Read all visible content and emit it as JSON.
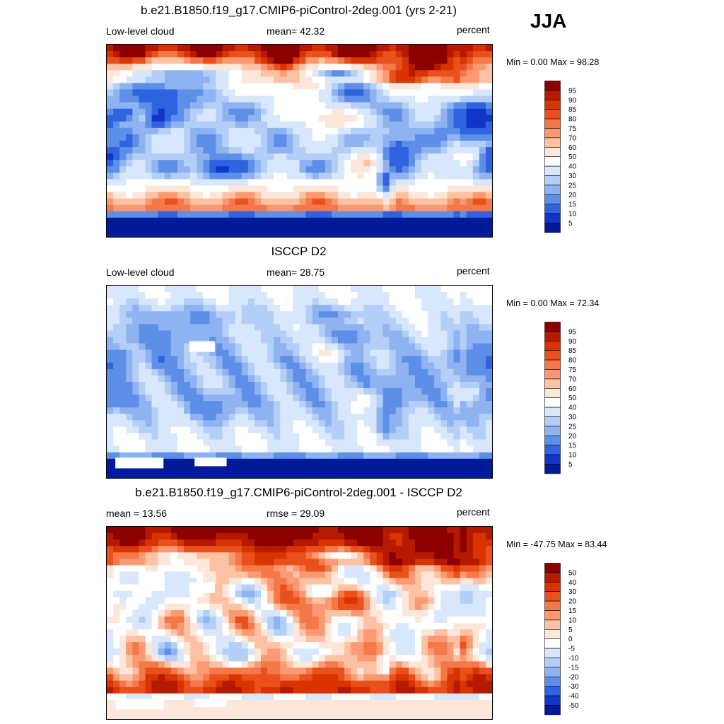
{
  "season": "JJA",
  "panels": [
    {
      "title": "b.e21.B1850.f19_g17.CMIP6-piControl-2deg.001 (yrs 2-21)",
      "left": "Low-level cloud",
      "center": "mean=  42.32",
      "right": "percent",
      "minmax": "Min =   0.00 Max =  98.28",
      "scale": "abs"
    },
    {
      "title": "ISCCP D2",
      "left": "Low-level cloud",
      "center": "mean=  28.75",
      "right": "percent",
      "minmax": "Min =   0.00 Max =  72.34",
      "scale": "abs"
    },
    {
      "title": "b.e21.B1850.f19_g17.CMIP6-piControl-2deg.001 - ISCCP D2",
      "left": "mean =  13.56",
      "center": "rmse =  29.09",
      "right": "percent",
      "minmax": "Min = -47.75 Max =  83.44",
      "scale": "diff"
    }
  ],
  "colorbars": {
    "abs": {
      "labels": [
        "95",
        "90",
        "85",
        "80",
        "75",
        "70",
        "60",
        "50",
        "40",
        "30",
        "25",
        "20",
        "15",
        "10",
        "5"
      ],
      "colors": [
        "#8b0000",
        "#b51a00",
        "#d93400",
        "#e9501c",
        "#f47848",
        "#fb9a72",
        "#fdc2a4",
        "#fde7da",
        "#ffffff",
        "#d8e7fb",
        "#b4cff7",
        "#8fb3f0",
        "#5e8fe8",
        "#2f63e0",
        "#1035c8",
        "#001a99"
      ]
    },
    "diff": {
      "labels": [
        "50",
        "40",
        "30",
        "20",
        "15",
        "10",
        "5",
        "0",
        "-5",
        "-10",
        "-15",
        "-20",
        "-30",
        "-40",
        "-50"
      ],
      "colors": [
        "#8b0000",
        "#b51a00",
        "#d93400",
        "#e9501c",
        "#f47848",
        "#fb9a72",
        "#fdc2a4",
        "#fde7da",
        "#ffffff",
        "#d8e7fb",
        "#b4cff7",
        "#8fb3f0",
        "#5e8fe8",
        "#2f63e0",
        "#1035c8",
        "#001a99"
      ]
    }
  }
}
